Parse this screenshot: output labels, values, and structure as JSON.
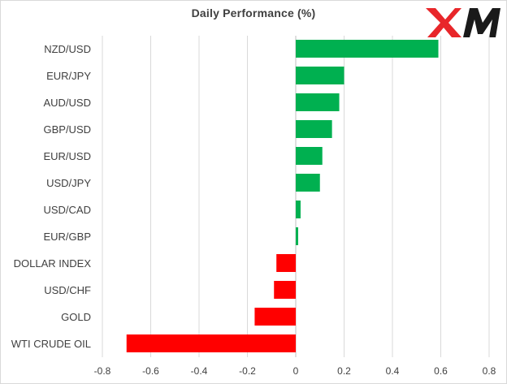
{
  "brand": {
    "logo_text": "XM",
    "colors": {
      "x_red": "#e8262a",
      "m_dark": "#1a1a1a"
    }
  },
  "chart_data": {
    "type": "bar",
    "orientation": "horizontal",
    "title": "Daily Performance (%)",
    "categories": [
      "NZD/USD",
      "EUR/JPY",
      "AUD/USD",
      "GBP/USD",
      "EUR/USD",
      "USD/JPY",
      "USD/CAD",
      "EUR/GBP",
      "DOLLAR INDEX",
      "USD/CHF",
      "GOLD",
      "WTI CRUDE OIL"
    ],
    "values": [
      0.59,
      0.2,
      0.18,
      0.15,
      0.11,
      0.1,
      0.02,
      0.01,
      -0.08,
      -0.09,
      -0.17,
      -0.7
    ],
    "xlim": [
      -0.8,
      0.8
    ],
    "xticks": [
      -0.8,
      -0.6,
      -0.4,
      -0.2,
      0,
      0.2,
      0.4,
      0.6,
      0.8
    ],
    "xtick_labels": [
      "-0.8",
      "-0.6",
      "-0.4",
      "-0.2",
      "0",
      "0.2",
      "0.4",
      "0.6",
      "0.8"
    ],
    "grid": "vertical",
    "colors": {
      "positive": "#00b050",
      "negative": "#ff0000",
      "grid": "#d9d9d9",
      "axis": "#bfbfbf"
    }
  }
}
